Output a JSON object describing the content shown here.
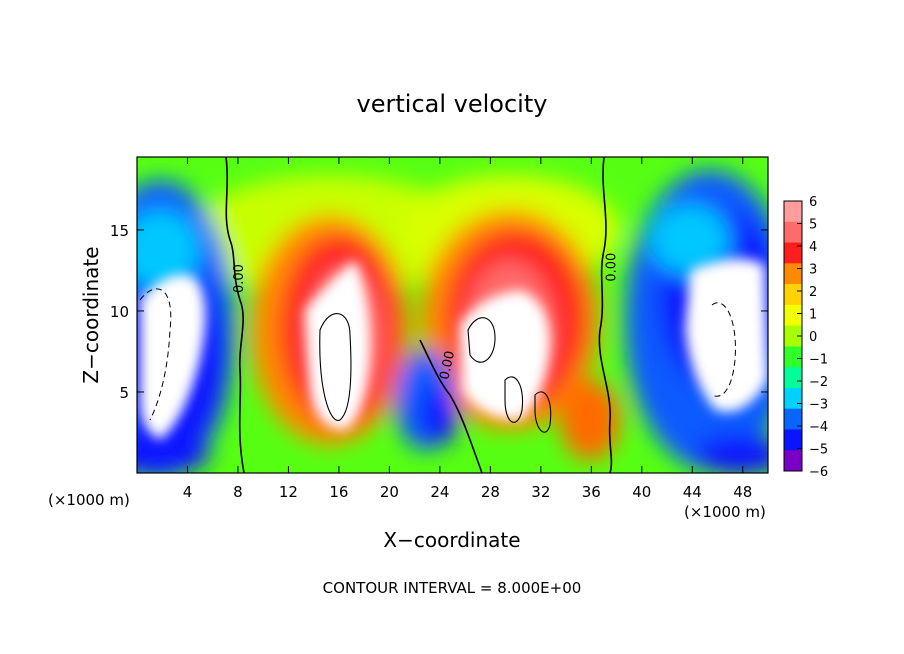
{
  "chart_data": {
    "type": "heatmap",
    "title": "vertical velocity",
    "xlabel": "X−coordinate",
    "ylabel": "Z−coordinate",
    "x_unit_left": "(×1000 m)",
    "x_unit_right": "(×1000 m)",
    "footer": "CONTOUR INTERVAL = 8.000E+00",
    "xlim": [
      0,
      50
    ],
    "ylim": [
      0,
      19.5
    ],
    "x_ticks": [
      4,
      8,
      12,
      16,
      20,
      24,
      28,
      32,
      36,
      40,
      44,
      48
    ],
    "y_ticks": [
      5,
      10,
      15
    ],
    "x_tick_labels": [
      "4",
      "8",
      "12",
      "16",
      "20",
      "24",
      "28",
      "32",
      "36",
      "40",
      "44",
      "48"
    ],
    "y_tick_labels": [
      "5",
      "10",
      "15"
    ],
    "colorbar": {
      "range": [
        -6,
        6
      ],
      "tick_labels": [
        "6",
        "5",
        "4",
        "3",
        "2",
        "1",
        "0",
        "−1",
        "−2",
        "−3",
        "−4",
        "−5",
        "−6"
      ],
      "colors": [
        "#ff9c9c",
        "#ff6a6a",
        "#ff1e1e",
        "#ff8a00",
        "#ffd200",
        "#f2ff00",
        "#a8ff00",
        "#30ff2a",
        "#00ff9a",
        "#00d2ff",
        "#0a64ff",
        "#0a14ff",
        "#7a00c8"
      ]
    },
    "contour_labels": [
      {
        "text": "0.00",
        "x": 8.0,
        "y": 12.0
      },
      {
        "text": "0.00",
        "x": 24.5,
        "y": 6.6
      },
      {
        "text": "0.00",
        "x": 37.5,
        "y": 12.7
      }
    ],
    "updrafts": [
      {
        "x": 16.5,
        "z": 10.5,
        "peak": 6
      },
      {
        "x": 29.0,
        "z": 10.0,
        "peak": 6
      }
    ],
    "downdrafts": [
      {
        "x": 2.5,
        "z": 8.0,
        "peak": -6
      },
      {
        "x": 46.0,
        "z": 9.5,
        "peak": -6
      }
    ]
  }
}
